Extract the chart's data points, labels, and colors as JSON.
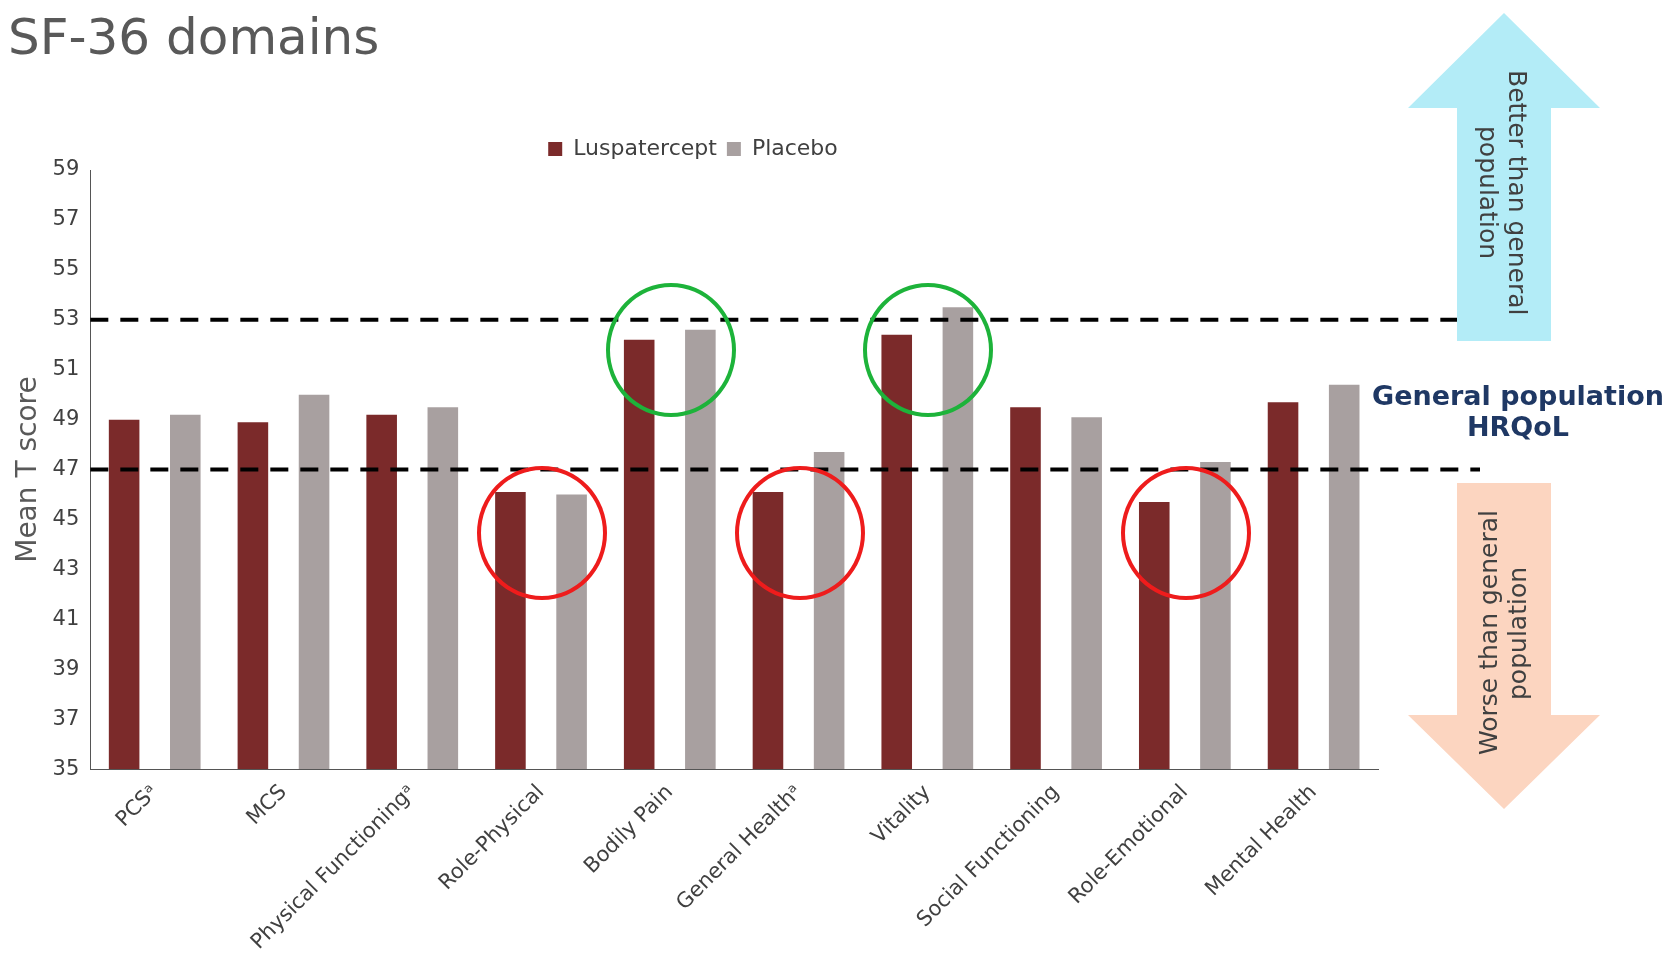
{
  "chart_data": {
    "type": "bar",
    "title": "SF-36 domains",
    "ylabel": "Mean T score",
    "categories": [
      "PCSᵃ",
      "MCS",
      "Physical Functioningᵃ",
      "Role-Physical",
      "Bodily Pain",
      "General Healthᵃ",
      "Vitality",
      "Social Functioning",
      "Role-Emotional",
      "Mental Health"
    ],
    "series": [
      {
        "name": "Luspatercept",
        "color": "#7b2a2a",
        "values": [
          49.0,
          48.9,
          49.2,
          46.1,
          52.2,
          46.1,
          52.4,
          49.5,
          45.7,
          49.7
        ]
      },
      {
        "name": "Placebo",
        "color": "#a8a0a0",
        "values": [
          49.2,
          50.0,
          49.5,
          46.0,
          52.6,
          47.7,
          53.5,
          49.1,
          47.3,
          50.4
        ]
      }
    ],
    "ylim": [
      35,
      59
    ],
    "yticks": [
      35,
      37,
      39,
      41,
      43,
      45,
      47,
      49,
      51,
      53,
      55,
      57,
      59
    ],
    "grid": false,
    "legend": "top",
    "ref_lines": [
      {
        "axis": "y",
        "value": 53,
        "color": "#000000",
        "line_style": "dashed"
      },
      {
        "axis": "y",
        "value": 47,
        "color": "#000000",
        "line_style": "dashed"
      }
    ],
    "annotations": [
      "General population HRQoL",
      "Better than general population",
      "Worse than general population"
    ]
  }
}
